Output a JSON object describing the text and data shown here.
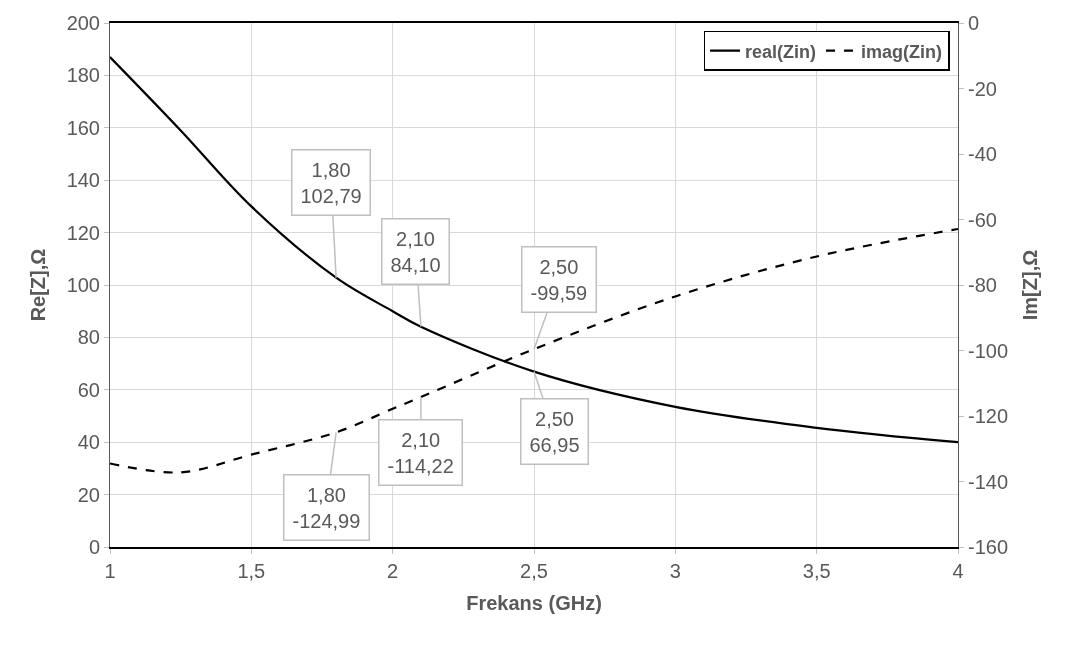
{
  "chart_data": {
    "type": "line",
    "xlabel": "Frekans (GHz)",
    "ylabel": "Re[Z],Ω",
    "y2label": "Im[Z],Ω",
    "series": [
      {
        "name": "real(Zin)",
        "color": "#000000",
        "line_style": "solid",
        "x": [
          1,
          1.25,
          1.5,
          1.8,
          2,
          2.1,
          2.5,
          3,
          3.5,
          4
        ],
        "values": [
          187,
          159,
          130,
          102.79,
          90,
          84.1,
          66.95,
          53.5,
          45.5,
          40
        ],
        "value_labels": [
          null,
          null,
          null,
          "1,80\n102,79",
          null,
          "2,10\n84,10",
          "2,50\n66,95",
          null,
          null,
          null
        ]
      },
      {
        "name": "imag(Zin)",
        "color": "#000000",
        "line_style": "dashed",
        "axis": "y2",
        "x": [
          1,
          1.25,
          1.5,
          1.8,
          2,
          2.1,
          2.5,
          3,
          3.5,
          4
        ],
        "values": [
          -134.5,
          -137.2,
          -131.8,
          -124.99,
          -117.8,
          -114.22,
          -99.59,
          -83.5,
          -71.3,
          -62.9
        ],
        "value_labels": [
          null,
          null,
          null,
          "1,80\n-124,99",
          null,
          "2,10\n-114,22",
          "2,50\n-99,59",
          null,
          null,
          null
        ]
      }
    ],
    "xlim": [
      1,
      4
    ],
    "xticks": [
      1,
      {
        "value": 1.5,
        "label": "1,5"
      },
      2,
      {
        "value": 2.5,
        "label": "2,5"
      },
      3,
      {
        "value": 3.5,
        "label": "3,5"
      },
      4
    ],
    "ylim": [
      0,
      200
    ],
    "yticks": [
      0,
      20,
      40,
      60,
      80,
      100,
      120,
      140,
      160,
      180,
      200
    ],
    "y2lim": [
      -160,
      0
    ],
    "y2ticks": [
      -160,
      -140,
      -120,
      -100,
      -80,
      -60,
      -40,
      -20,
      0
    ],
    "grid": true,
    "legend": "top right",
    "marker": "none"
  }
}
